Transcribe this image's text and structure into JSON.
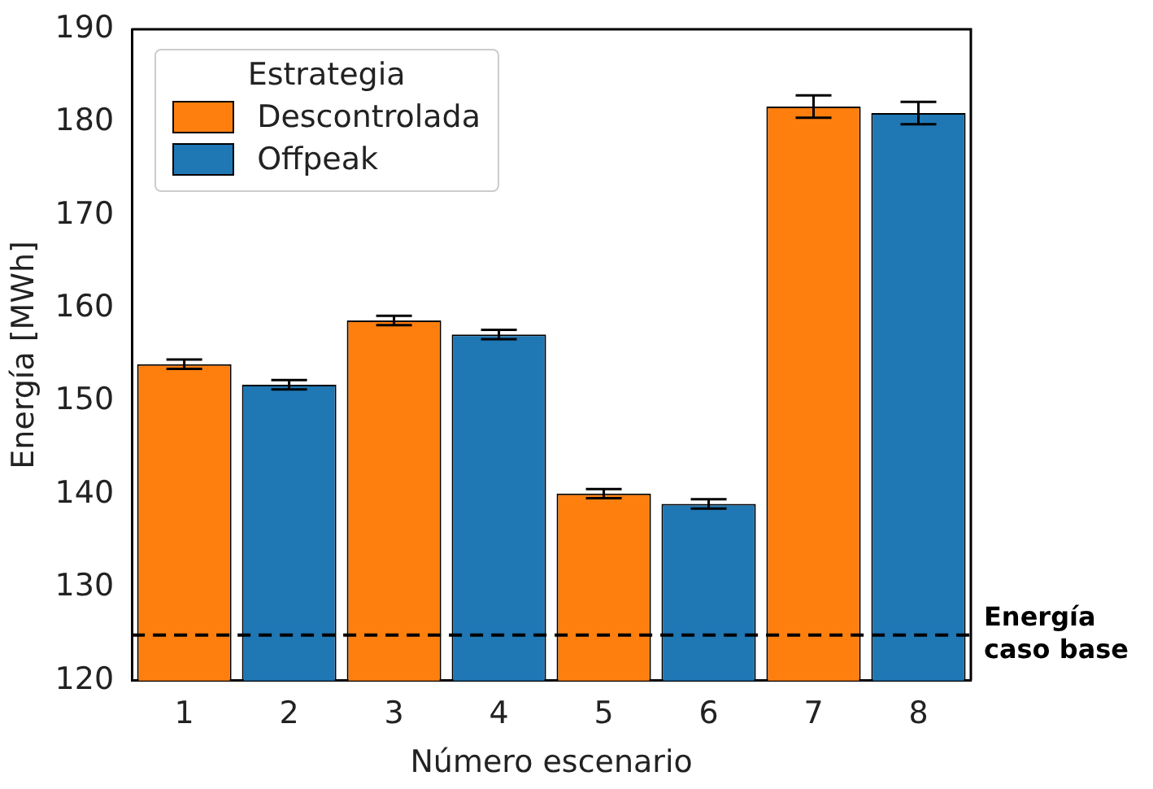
{
  "chart_data": {
    "type": "bar",
    "xlabel": "Número escenario",
    "ylabel": "Energía [MWh]",
    "legend_title": "Estrategia",
    "categories": [
      "1",
      "2",
      "3",
      "4",
      "5",
      "6",
      "7",
      "8"
    ],
    "series": [
      {
        "name": "Descontrolada",
        "color": "#ff7f0e",
        "values": [
          154.0,
          null,
          158.7,
          null,
          140.1,
          null,
          181.7,
          null
        ],
        "errors": [
          0.5,
          null,
          0.5,
          null,
          0.5,
          null,
          1.2,
          null
        ]
      },
      {
        "name": "Offpeak",
        "color": "#1f77b4",
        "values": [
          null,
          151.8,
          null,
          157.2,
          null,
          139.0,
          null,
          181.0
        ],
        "errors": [
          null,
          0.5,
          null,
          0.5,
          null,
          0.5,
          null,
          1.2
        ]
      }
    ],
    "ylim": [
      120,
      190
    ],
    "yticks": [
      120,
      130,
      140,
      150,
      160,
      170,
      180,
      190
    ],
    "grid": false,
    "legend": "top left",
    "ref_lines": [
      {
        "axis": "y",
        "value": 124.9,
        "label": "Energía caso base",
        "color": "#000000",
        "line_style": "dashed"
      }
    ]
  }
}
